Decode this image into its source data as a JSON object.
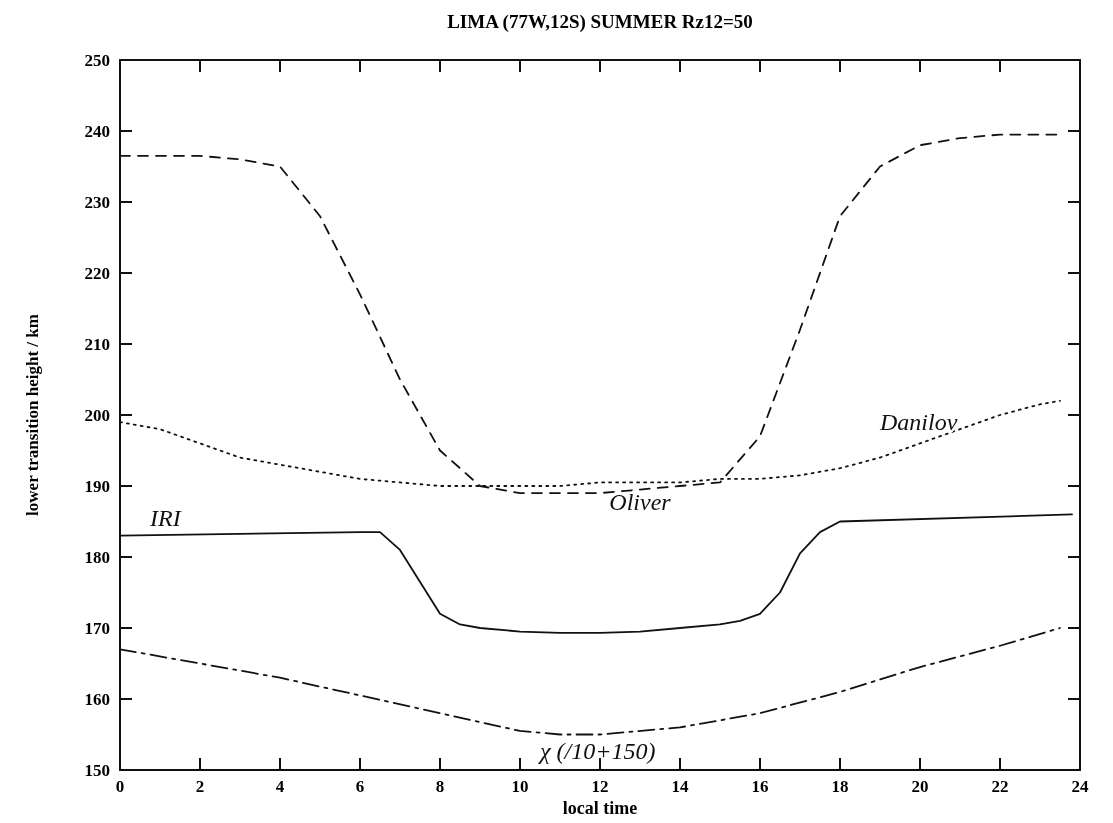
{
  "chart_data": {
    "type": "line",
    "title": "LIMA (77W,12S)   SUMMER    Rz12=50",
    "xlabel": "local time",
    "ylabel": "lower transition height / km",
    "xlim": [
      0,
      24
    ],
    "ylim": [
      150,
      250
    ],
    "xticks": [
      0,
      2,
      4,
      6,
      8,
      10,
      12,
      14,
      16,
      18,
      20,
      22,
      24
    ],
    "yticks": [
      150,
      160,
      170,
      180,
      190,
      200,
      210,
      220,
      230,
      240,
      250
    ],
    "grid": false,
    "marker": "none",
    "series": [
      {
        "name": "Oliver",
        "color": "#111111",
        "line_style": "dashed",
        "x": [
          0,
          1,
          2,
          3,
          4,
          5,
          6,
          7,
          8,
          9,
          10,
          11,
          12,
          13,
          14,
          15,
          16,
          17,
          18,
          19,
          20,
          21,
          22,
          23,
          23.5
        ],
        "values": [
          236.5,
          236.5,
          236.5,
          236,
          235,
          228,
          217,
          205,
          195,
          190,
          189,
          189,
          189,
          189.5,
          190,
          190.5,
          197,
          212,
          228,
          235,
          238,
          239,
          239.5,
          239.5,
          239.5
        ]
      },
      {
        "name": "Danilov",
        "color": "#111111",
        "line_style": "dotted",
        "x": [
          0,
          1,
          2,
          3,
          4,
          5,
          6,
          7,
          8,
          9,
          10,
          11,
          12,
          13,
          14,
          15,
          16,
          17,
          18,
          19,
          20,
          21,
          22,
          23,
          23.5
        ],
        "values": [
          199,
          198,
          196,
          194,
          193,
          192,
          191,
          190.5,
          190,
          190,
          190,
          190,
          190.5,
          190.5,
          190.5,
          191,
          191,
          191.5,
          192.5,
          194,
          196,
          198,
          200,
          201.5,
          202
        ]
      },
      {
        "name": "IRI",
        "color": "#111111",
        "line_style": "solid",
        "x": [
          0,
          6,
          6.5,
          7,
          8,
          8.5,
          9,
          10,
          11,
          12,
          13,
          14,
          15,
          15.5,
          16,
          16.5,
          17,
          17.5,
          18,
          23.8
        ],
        "values": [
          183,
          183.5,
          183.5,
          181,
          172,
          170.5,
          170,
          169.5,
          169.3,
          169.3,
          169.5,
          170,
          170.5,
          171,
          172,
          175,
          180.5,
          183.5,
          185,
          186
        ]
      },
      {
        "name": "χ (/10+150)",
        "color": "#111111",
        "line_style": "dashdot",
        "x": [
          0,
          2,
          4,
          6,
          8,
          10,
          11,
          12,
          14,
          16,
          18,
          20,
          22,
          23.5
        ],
        "values": [
          167,
          165,
          163,
          160.5,
          158,
          155.5,
          155,
          155,
          156,
          158,
          161,
          164.5,
          167.5,
          170
        ]
      }
    ]
  }
}
